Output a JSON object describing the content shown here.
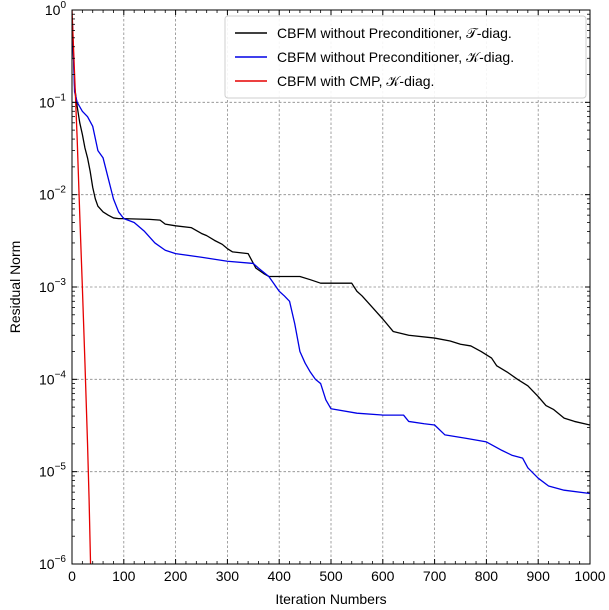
{
  "chart_data": {
    "type": "line",
    "title": "",
    "xlabel": "Iteration Numbers",
    "ylabel": "Residual Norm",
    "xlim": [
      0,
      1000
    ],
    "ylim": [
      1e-06,
      1
    ],
    "yscale": "log",
    "grid": true,
    "legend_position": "top-right",
    "x_ticks": [
      0,
      100,
      200,
      300,
      400,
      500,
      600,
      700,
      800,
      900,
      1000
    ],
    "x_tick_labels": [
      "0",
      "100",
      "200",
      "300",
      "400",
      "500",
      "600",
      "700",
      "800",
      "900",
      "1000"
    ],
    "y_ticks": [
      1e-06,
      1e-05,
      0.0001,
      0.001,
      0.01,
      0.1,
      1
    ],
    "y_tick_labels": [
      {
        "base": "10",
        "exp": "−6"
      },
      {
        "base": "10",
        "exp": "−5"
      },
      {
        "base": "10",
        "exp": "−4"
      },
      {
        "base": "10",
        "exp": "−3"
      },
      {
        "base": "10",
        "exp": "−2"
      },
      {
        "base": "10",
        "exp": "−1"
      },
      {
        "base": "10",
        "exp": "0"
      }
    ],
    "series": [
      {
        "name": "CBFM without Preconditioner, 𝒯-diag.",
        "color": "#000000",
        "points": [
          [
            1,
            0.6
          ],
          [
            5,
            0.15
          ],
          [
            10,
            0.09
          ],
          [
            15,
            0.06
          ],
          [
            20,
            0.045
          ],
          [
            25,
            0.032
          ],
          [
            30,
            0.025
          ],
          [
            35,
            0.018
          ],
          [
            40,
            0.012
          ],
          [
            45,
            0.009
          ],
          [
            50,
            0.0075
          ],
          [
            60,
            0.0065
          ],
          [
            70,
            0.006
          ],
          [
            80,
            0.0056
          ],
          [
            90,
            0.0055
          ],
          [
            100,
            0.0055
          ],
          [
            150,
            0.0054
          ],
          [
            170,
            0.0053
          ],
          [
            180,
            0.0048
          ],
          [
            200,
            0.0046
          ],
          [
            230,
            0.0044
          ],
          [
            250,
            0.0038
          ],
          [
            260,
            0.0036
          ],
          [
            275,
            0.0032
          ],
          [
            290,
            0.0029
          ],
          [
            300,
            0.0026
          ],
          [
            310,
            0.0024
          ],
          [
            340,
            0.0023
          ],
          [
            355,
            0.0016
          ],
          [
            370,
            0.0014
          ],
          [
            380,
            0.0013
          ],
          [
            400,
            0.0013
          ],
          [
            440,
            0.0013
          ],
          [
            460,
            0.0012
          ],
          [
            480,
            0.0011
          ],
          [
            500,
            0.0011
          ],
          [
            540,
            0.0011
          ],
          [
            550,
            0.0009
          ],
          [
            560,
            0.0008
          ],
          [
            580,
            0.0006
          ],
          [
            600,
            0.00045
          ],
          [
            620,
            0.00033
          ],
          [
            650,
            0.0003
          ],
          [
            700,
            0.00028
          ],
          [
            730,
            0.00026
          ],
          [
            750,
            0.00024
          ],
          [
            770,
            0.00023
          ],
          [
            790,
            0.0002
          ],
          [
            810,
            0.00017
          ],
          [
            820,
            0.00014
          ],
          [
            840,
            0.00012
          ],
          [
            860,
            0.0001
          ],
          [
            880,
            8.5e-05
          ],
          [
            900,
            6.5e-05
          ],
          [
            915,
            5.2e-05
          ],
          [
            930,
            4.7e-05
          ],
          [
            950,
            3.8e-05
          ],
          [
            970,
            3.5e-05
          ],
          [
            1000,
            3.2e-05
          ]
        ]
      },
      {
        "name": "CBFM without Preconditioner, 𝒦-diag.",
        "color": "#0000e6",
        "points": [
          [
            1,
            0.7
          ],
          [
            5,
            0.13
          ],
          [
            10,
            0.1
          ],
          [
            20,
            0.08
          ],
          [
            30,
            0.07
          ],
          [
            40,
            0.055
          ],
          [
            50,
            0.03
          ],
          [
            60,
            0.025
          ],
          [
            70,
            0.015
          ],
          [
            80,
            0.009
          ],
          [
            90,
            0.0065
          ],
          [
            100,
            0.0055
          ],
          [
            120,
            0.005
          ],
          [
            140,
            0.004
          ],
          [
            160,
            0.003
          ],
          [
            180,
            0.0025
          ],
          [
            200,
            0.0023
          ],
          [
            250,
            0.0021
          ],
          [
            300,
            0.0019
          ],
          [
            350,
            0.0018
          ],
          [
            360,
            0.0016
          ],
          [
            380,
            0.0013
          ],
          [
            400,
            0.0009
          ],
          [
            410,
            0.0008
          ],
          [
            420,
            0.0007
          ],
          [
            430,
            0.0004
          ],
          [
            440,
            0.0002
          ],
          [
            450,
            0.00015
          ],
          [
            460,
            0.00012
          ],
          [
            470,
            0.0001
          ],
          [
            480,
            9e-05
          ],
          [
            490,
            6e-05
          ],
          [
            500,
            4.8e-05
          ],
          [
            550,
            4.3e-05
          ],
          [
            600,
            4.1e-05
          ],
          [
            640,
            4.1e-05
          ],
          [
            650,
            3.5e-05
          ],
          [
            680,
            3.3e-05
          ],
          [
            700,
            3.2e-05
          ],
          [
            720,
            2.5e-05
          ],
          [
            760,
            2.3e-05
          ],
          [
            800,
            2.1e-05
          ],
          [
            830,
            1.7e-05
          ],
          [
            850,
            1.5e-05
          ],
          [
            870,
            1.4e-05
          ],
          [
            880,
            1.1e-05
          ],
          [
            900,
            8.5e-06
          ],
          [
            920,
            7e-06
          ],
          [
            950,
            6.3e-06
          ],
          [
            1000,
            5.8e-06
          ]
        ]
      },
      {
        "name": "CBFM with CMP, 𝒦-diag.",
        "color": "#e60000",
        "points": [
          [
            0,
            1.0
          ],
          [
            5,
            0.2
          ],
          [
            10,
            0.04
          ],
          [
            15,
            0.006
          ],
          [
            20,
            0.001
          ],
          [
            25,
            0.00015
          ],
          [
            30,
            2e-05
          ],
          [
            33,
            5e-06
          ],
          [
            36,
            9e-07
          ]
        ]
      }
    ]
  }
}
